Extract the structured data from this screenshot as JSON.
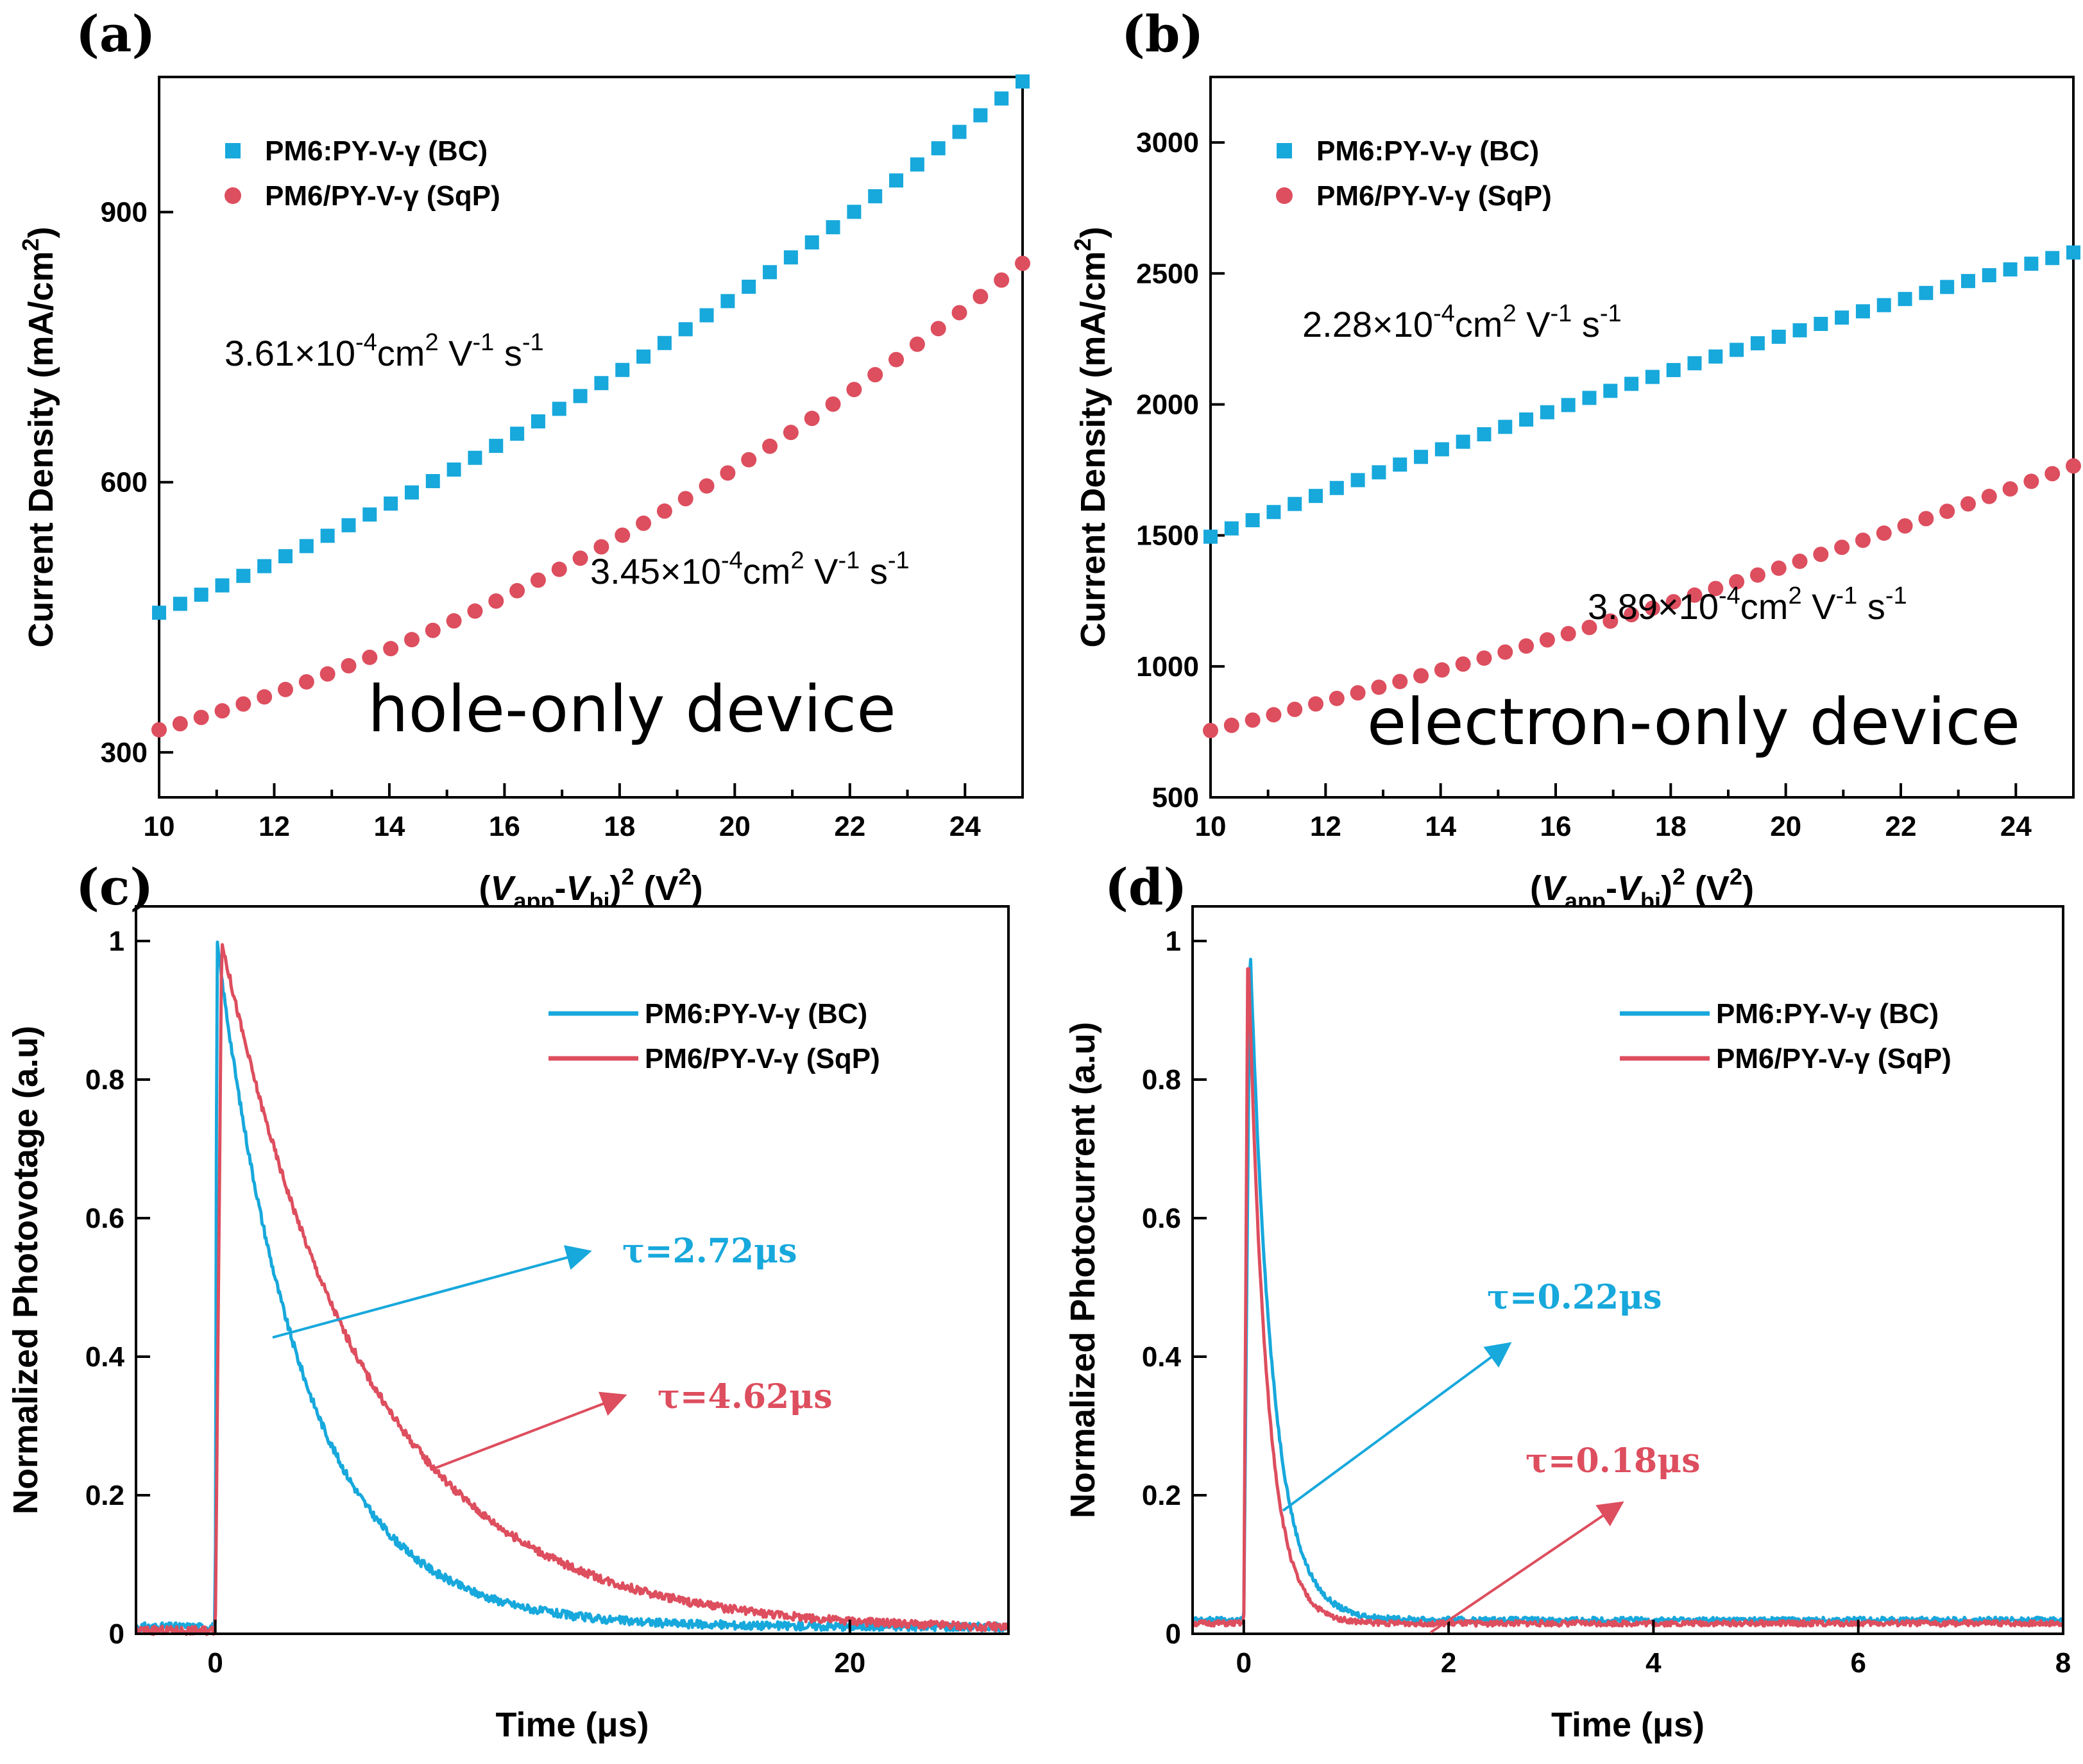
{
  "colors": {
    "bc": "#17a8dc",
    "sqp": "#dd4e5e",
    "axis": "#000000"
  },
  "chart_data": [
    {
      "panel": "(a)",
      "type": "scatter",
      "title": "",
      "xlabel": "(Vapp-Vbi)2  (V2)",
      "ylabel": "Current Density (mA/cm2)",
      "xlim": [
        10,
        25
      ],
      "ylim": [
        250,
        1050
      ],
      "xticks": [
        10,
        12,
        14,
        16,
        18,
        20,
        22,
        24
      ],
      "yticks": [
        300,
        600,
        900
      ],
      "series": [
        {
          "name": "PM6:PY-V-γ (BC)",
          "marker": "square",
          "color": "#17a8dc",
          "y_start": 455,
          "y_end": 1045,
          "curve": 0.08
        },
        {
          "name": "PM6/PY-V-γ (SqP)",
          "marker": "circle",
          "color": "#dd4e5e",
          "y_start": 325,
          "y_end": 843,
          "curve": 0.12
        }
      ],
      "annotations": {
        "mobility_bc": {
          "base": "3.61×10",
          "exp": "-4",
          "unit": "cm",
          "unit_exp": "2",
          "v": " V",
          "v_exp": "-1",
          "s": " s",
          "s_exp": "-1"
        },
        "mobility_sqp": {
          "base": "3.45×10",
          "exp": "-4",
          "unit": "cm",
          "unit_exp": "2",
          "v": " V",
          "v_exp": "-1",
          "s": " s",
          "s_exp": "-1"
        },
        "device": "hole-only device"
      }
    },
    {
      "panel": "(b)",
      "type": "scatter",
      "title": "",
      "xlabel": "(Vapp-Vbi)2  (V2)",
      "ylabel": "Current Density (mA/cm2)",
      "xlim": [
        10,
        25
      ],
      "ylim": [
        500,
        3250
      ],
      "xticks": [
        10,
        12,
        14,
        16,
        18,
        20,
        22,
        24
      ],
      "yticks": [
        500,
        1000,
        1500,
        2000,
        2500,
        3000
      ],
      "series": [
        {
          "name": "PM6:PY-V-γ (BC)",
          "marker": "square",
          "color": "#17a8dc",
          "y_start": 1495,
          "y_end": 2580,
          "curve": -0.05
        },
        {
          "name": "PM6/PY-V-γ (SqP)",
          "marker": "circle",
          "color": "#dd4e5e",
          "y_start": 755,
          "y_end": 1765,
          "curve": 0.05
        }
      ],
      "annotations": {
        "mobility_bc": {
          "base": "2.28×10",
          "exp": "-4",
          "unit": "cm",
          "unit_exp": "2",
          "v": " V",
          "v_exp": "-1",
          "s": " s",
          "s_exp": "-1"
        },
        "mobility_sqp": {
          "base": "3.89×10",
          "exp": "-4",
          "unit": "cm",
          "unit_exp": "2",
          "v": " V",
          "v_exp": "-1",
          "s": " s",
          "s_exp": "-1"
        },
        "device": "electron-only device"
      }
    },
    {
      "panel": "(c)",
      "type": "line",
      "title": "",
      "xlabel": "Time (μs)",
      "ylabel": "Normalized Photovotage (a.u)",
      "xlim": [
        -2.5,
        25
      ],
      "ylim": [
        0,
        1.05
      ],
      "xticks": [
        0,
        20
      ],
      "yticks": [
        0.0,
        0.2,
        0.4,
        0.6,
        0.8,
        1.0
      ],
      "series": [
        {
          "name": "PM6:PY-V-γ (BC)",
          "color": "#17a8dc",
          "tau_us": 2.72,
          "baseline": 0.01,
          "peak_time": 0.05
        },
        {
          "name": "PM6/PY-V-γ (SqP)",
          "color": "#dd4e5e",
          "tau_us": 4.62,
          "baseline": 0.005,
          "peak_time": 0.2
        }
      ],
      "annotations": {
        "tau_bc": "τ=2.72μs",
        "tau_sqp": "τ=4.62μs"
      }
    },
    {
      "panel": "(d)",
      "type": "line",
      "title": "",
      "xlabel": "Time (μs)",
      "ylabel": "Normalized Photocurrent (a.u)",
      "xlim": [
        -0.5,
        8
      ],
      "ylim": [
        0,
        1.05
      ],
      "xticks": [
        0,
        2,
        4,
        6,
        8
      ],
      "yticks": [
        0.0,
        0.2,
        0.4,
        0.6,
        0.8,
        1.0
      ],
      "series": [
        {
          "name": "PM6:PY-V-γ (BC)",
          "color": "#17a8dc",
          "tau_us": 0.22,
          "baseline": 0.02,
          "peak_time": 0.06
        },
        {
          "name": "PM6/PY-V-γ (SqP)",
          "color": "#dd4e5e",
          "tau_us": 0.18,
          "baseline": 0.015,
          "peak_time": 0.04
        }
      ],
      "annotations": {
        "tau_bc": "τ=0.22μs",
        "tau_sqp": "τ=0.18μs"
      }
    }
  ],
  "labels": {
    "xlabel_ab": {
      "open": "(",
      "v": "V",
      "app": "app",
      "minus": "-",
      "v2": "V",
      "bi": "bi",
      "close": ")",
      "sq": "2",
      "unit": "(V",
      "unit_sq": "2",
      "unit_close": ")"
    },
    "ylabel_ab": {
      "main": "Current Density (mA/cm",
      "sup": "2",
      "close": ")"
    }
  }
}
